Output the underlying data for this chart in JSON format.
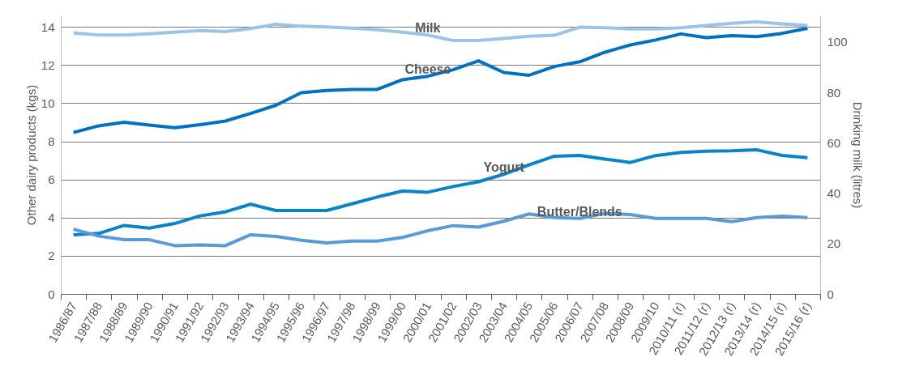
{
  "chart_data": {
    "type": "line",
    "xlabel": null,
    "ylabel": "Other dairy products (kgs)",
    "y2label": "Drinking milk (litres)",
    "categories": [
      "1986/87",
      "1987/88",
      "1988/89",
      "1989/90",
      "1990/91",
      "1991/92",
      "1992/93",
      "1993/94",
      "1994/95",
      "1995/96",
      "1996/97",
      "1997/98",
      "1998/99",
      "1999/00",
      "2000/01",
      "2001/02",
      "2002/03",
      "2003/04",
      "2004/05",
      "2005/06",
      "2006/07",
      "2007/08",
      "2008/09",
      "2009/10",
      "2010/11 (r)",
      "2011/12 (r)",
      "2012/13 (r)",
      "2013/14 (r)",
      "2014/15 (r)",
      "2015/16 (r)"
    ],
    "series": [
      {
        "name": "Milk",
        "color": "#9dc3e6",
        "axis": "y2",
        "values": [
          103.6,
          102.8,
          102.8,
          103.3,
          103.9,
          104.6,
          104.2,
          105.4,
          107.1,
          106.3,
          106.0,
          105.5,
          104.9,
          103.9,
          102.8,
          100.6,
          100.6,
          101.4,
          102.3,
          102.7,
          105.9,
          105.7,
          105.2,
          105.2,
          105.7,
          106.6,
          107.5,
          108.0,
          107.2,
          106.6
        ]
      },
      {
        "name": "Cheese",
        "color": "#0070c0",
        "values": [
          8.46,
          8.81,
          9.0,
          8.85,
          8.71,
          8.87,
          9.06,
          9.46,
          9.89,
          10.55,
          10.66,
          10.72,
          10.72,
          11.23,
          11.41,
          11.75,
          12.22,
          11.61,
          11.46,
          11.92,
          12.17,
          12.67,
          13.05,
          13.31,
          13.63,
          13.43,
          13.54,
          13.49,
          13.66,
          13.92
        ]
      },
      {
        "name": "Yogurt",
        "color": "#0a84c8",
        "values": [
          3.1,
          3.17,
          3.59,
          3.45,
          3.69,
          4.09,
          4.3,
          4.7,
          4.37,
          4.37,
          4.37,
          4.72,
          5.08,
          5.39,
          5.33,
          5.63,
          5.88,
          6.27,
          6.76,
          7.22,
          7.26,
          7.07,
          6.89,
          7.25,
          7.42,
          7.48,
          7.5,
          7.55,
          7.26,
          7.14
        ]
      },
      {
        "name": "Butter/Blends",
        "color": "#5b9bd5",
        "values": [
          3.39,
          3.03,
          2.84,
          2.84,
          2.53,
          2.57,
          2.53,
          3.1,
          3.01,
          2.81,
          2.67,
          2.77,
          2.77,
          2.96,
          3.31,
          3.58,
          3.5,
          3.81,
          4.19,
          4.0,
          3.96,
          4.22,
          4.16,
          3.96,
          3.96,
          3.96,
          3.79,
          4.0,
          4.07,
          4.0
        ]
      }
    ],
    "ylim": [
      0,
      14.6
    ],
    "yticks": [
      0,
      2,
      4,
      6,
      8,
      10,
      12,
      14
    ],
    "y2lim": [
      0,
      110.6
    ],
    "y2ticks": [
      0,
      20,
      40,
      60,
      80,
      100
    ],
    "grid": "y",
    "marker": "none",
    "line_style": "solid"
  }
}
